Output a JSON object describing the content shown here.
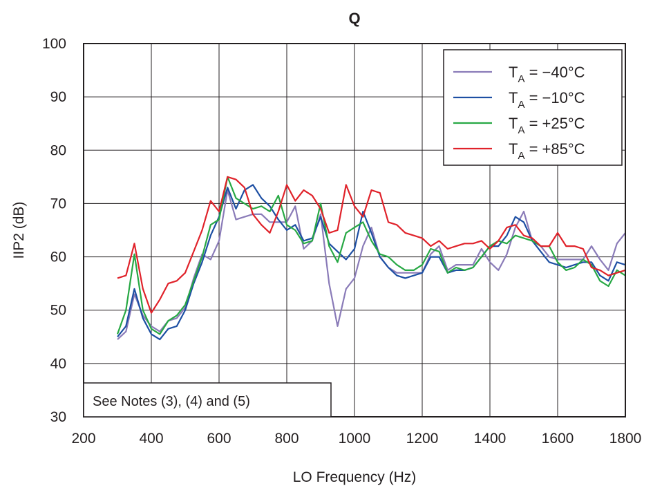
{
  "chart_data": {
    "type": "line",
    "title": "Q",
    "xlabel": "LO Frequency (Hz)",
    "ylabel": "IIP2 (dB)",
    "xlim": [
      200,
      1800
    ],
    "ylim": [
      30,
      100
    ],
    "xticks": [
      200,
      400,
      600,
      800,
      1000,
      1200,
      1400,
      1600,
      1800
    ],
    "yticks": [
      30,
      40,
      50,
      60,
      70,
      80,
      90,
      100
    ],
    "grid": true,
    "legend_position": "top-right",
    "annotation": "See Notes (3), (4) and (5)",
    "series": [
      {
        "legend_main": "T",
        "legend_sub": "A",
        "legend_rest": " = −40°C",
        "color": "#8a7bb8",
        "points": [
          [
            300,
            44.5
          ],
          [
            325,
            46
          ],
          [
            350,
            53
          ],
          [
            375,
            49
          ],
          [
            400,
            47
          ],
          [
            425,
            46
          ],
          [
            450,
            48
          ],
          [
            475,
            48.5
          ],
          [
            500,
            50.5
          ],
          [
            525,
            56
          ],
          [
            550,
            60.5
          ],
          [
            575,
            59.5
          ],
          [
            600,
            63
          ],
          [
            625,
            72.5
          ],
          [
            650,
            67
          ],
          [
            675,
            67.5
          ],
          [
            700,
            68
          ],
          [
            725,
            68
          ],
          [
            750,
            66.5
          ],
          [
            775,
            66.5
          ],
          [
            800,
            66.5
          ],
          [
            825,
            69.5
          ],
          [
            850,
            61.5
          ],
          [
            875,
            63
          ],
          [
            900,
            68
          ],
          [
            925,
            55
          ],
          [
            950,
            47
          ],
          [
            975,
            54
          ],
          [
            1000,
            56
          ],
          [
            1025,
            62
          ],
          [
            1050,
            65.5
          ],
          [
            1075,
            60
          ],
          [
            1100,
            58
          ],
          [
            1125,
            57
          ],
          [
            1150,
            57
          ],
          [
            1175,
            57
          ],
          [
            1200,
            57
          ],
          [
            1225,
            60.5
          ],
          [
            1250,
            62
          ],
          [
            1275,
            57.5
          ],
          [
            1300,
            58.5
          ],
          [
            1325,
            58.5
          ],
          [
            1350,
            58.5
          ],
          [
            1375,
            61.5
          ],
          [
            1400,
            59
          ],
          [
            1425,
            57.5
          ],
          [
            1450,
            60.5
          ],
          [
            1475,
            65.5
          ],
          [
            1500,
            68.5
          ],
          [
            1525,
            63
          ],
          [
            1550,
            62
          ],
          [
            1575,
            60
          ],
          [
            1600,
            59.5
          ],
          [
            1625,
            59.5
          ],
          [
            1650,
            59.5
          ],
          [
            1675,
            59.5
          ],
          [
            1700,
            62
          ],
          [
            1725,
            59.5
          ],
          [
            1750,
            57.5
          ],
          [
            1775,
            62.5
          ],
          [
            1800,
            64.5
          ]
        ]
      },
      {
        "legend_main": "T",
        "legend_sub": "A",
        "legend_rest": " = −10°C",
        "color": "#1d4fa3",
        "points": [
          [
            300,
            45
          ],
          [
            325,
            47
          ],
          [
            350,
            54
          ],
          [
            375,
            48.5
          ],
          [
            400,
            45.5
          ],
          [
            425,
            44.5
          ],
          [
            450,
            46.5
          ],
          [
            475,
            47
          ],
          [
            500,
            50
          ],
          [
            525,
            55
          ],
          [
            550,
            59
          ],
          [
            575,
            64
          ],
          [
            600,
            67.5
          ],
          [
            625,
            73
          ],
          [
            650,
            69
          ],
          [
            675,
            72.5
          ],
          [
            700,
            73.5
          ],
          [
            725,
            71
          ],
          [
            750,
            69.5
          ],
          [
            775,
            67
          ],
          [
            800,
            65
          ],
          [
            825,
            66
          ],
          [
            850,
            63
          ],
          [
            875,
            63.5
          ],
          [
            900,
            67.5
          ],
          [
            925,
            62.5
          ],
          [
            950,
            61
          ],
          [
            975,
            59.5
          ],
          [
            1000,
            61.5
          ],
          [
            1025,
            68.5
          ],
          [
            1050,
            64.5
          ],
          [
            1075,
            60
          ],
          [
            1100,
            58
          ],
          [
            1125,
            56.5
          ],
          [
            1150,
            56
          ],
          [
            1175,
            56.5
          ],
          [
            1200,
            57
          ],
          [
            1225,
            60
          ],
          [
            1250,
            60
          ],
          [
            1275,
            57
          ],
          [
            1300,
            57.5
          ],
          [
            1325,
            57.5
          ],
          [
            1350,
            58
          ],
          [
            1375,
            60
          ],
          [
            1400,
            62
          ],
          [
            1425,
            62
          ],
          [
            1450,
            64
          ],
          [
            1475,
            67.5
          ],
          [
            1500,
            66.5
          ],
          [
            1525,
            63
          ],
          [
            1550,
            61
          ],
          [
            1575,
            59
          ],
          [
            1600,
            58.5
          ],
          [
            1625,
            58
          ],
          [
            1650,
            58.5
          ],
          [
            1675,
            59
          ],
          [
            1700,
            59
          ],
          [
            1725,
            56.5
          ],
          [
            1750,
            55.5
          ],
          [
            1775,
            59
          ],
          [
            1800,
            58.5
          ]
        ]
      },
      {
        "legend_main": "T",
        "legend_sub": "A",
        "legend_rest": " = +25°C",
        "color": "#27a844",
        "points": [
          [
            300,
            45.5
          ],
          [
            325,
            50
          ],
          [
            350,
            60.5
          ],
          [
            375,
            50
          ],
          [
            400,
            46.5
          ],
          [
            425,
            45.5
          ],
          [
            450,
            48
          ],
          [
            475,
            49
          ],
          [
            500,
            51
          ],
          [
            525,
            55.5
          ],
          [
            550,
            60
          ],
          [
            575,
            66
          ],
          [
            600,
            67
          ],
          [
            625,
            75
          ],
          [
            650,
            71
          ],
          [
            675,
            70
          ],
          [
            700,
            69
          ],
          [
            725,
            69.5
          ],
          [
            750,
            68.5
          ],
          [
            775,
            71.5
          ],
          [
            800,
            66
          ],
          [
            825,
            65
          ],
          [
            850,
            62.5
          ],
          [
            875,
            63
          ],
          [
            900,
            70
          ],
          [
            925,
            62
          ],
          [
            950,
            59
          ],
          [
            975,
            64.5
          ],
          [
            1000,
            65.5
          ],
          [
            1025,
            66.5
          ],
          [
            1050,
            63
          ],
          [
            1075,
            60.5
          ],
          [
            1100,
            60
          ],
          [
            1125,
            58.5
          ],
          [
            1150,
            57.5
          ],
          [
            1175,
            57.5
          ],
          [
            1200,
            58.5
          ],
          [
            1225,
            61.5
          ],
          [
            1250,
            61
          ],
          [
            1275,
            57
          ],
          [
            1300,
            58
          ],
          [
            1325,
            57.5
          ],
          [
            1350,
            58
          ],
          [
            1375,
            60
          ],
          [
            1400,
            62
          ],
          [
            1425,
            63
          ],
          [
            1450,
            62.5
          ],
          [
            1475,
            64
          ],
          [
            1500,
            63.5
          ],
          [
            1525,
            63
          ],
          [
            1550,
            62
          ],
          [
            1575,
            62
          ],
          [
            1600,
            59
          ],
          [
            1625,
            57.5
          ],
          [
            1650,
            58
          ],
          [
            1675,
            59.5
          ],
          [
            1700,
            58.5
          ],
          [
            1725,
            55.5
          ],
          [
            1750,
            54.5
          ],
          [
            1775,
            57.5
          ],
          [
            1800,
            56.5
          ]
        ]
      },
      {
        "legend_main": "T",
        "legend_sub": "A",
        "legend_rest": " = +85°C",
        "color": "#e0222a",
        "points": [
          [
            300,
            56
          ],
          [
            325,
            56.5
          ],
          [
            350,
            62.5
          ],
          [
            375,
            54
          ],
          [
            400,
            49.5
          ],
          [
            425,
            52
          ],
          [
            450,
            55
          ],
          [
            475,
            55.5
          ],
          [
            500,
            57
          ],
          [
            525,
            61
          ],
          [
            550,
            65
          ],
          [
            575,
            70.5
          ],
          [
            600,
            68.5
          ],
          [
            625,
            75
          ],
          [
            650,
            74.5
          ],
          [
            675,
            73
          ],
          [
            700,
            68
          ],
          [
            725,
            66
          ],
          [
            750,
            64.5
          ],
          [
            775,
            68.5
          ],
          [
            800,
            73.5
          ],
          [
            825,
            70.5
          ],
          [
            850,
            72.5
          ],
          [
            875,
            71.5
          ],
          [
            900,
            69
          ],
          [
            925,
            64.5
          ],
          [
            950,
            65
          ],
          [
            975,
            73.5
          ],
          [
            1000,
            69.5
          ],
          [
            1025,
            67.5
          ],
          [
            1050,
            72.5
          ],
          [
            1075,
            72
          ],
          [
            1100,
            66.5
          ],
          [
            1125,
            66
          ],
          [
            1150,
            64.5
          ],
          [
            1175,
            64
          ],
          [
            1200,
            63.5
          ],
          [
            1225,
            62
          ],
          [
            1250,
            63
          ],
          [
            1275,
            61.5
          ],
          [
            1300,
            62
          ],
          [
            1325,
            62.5
          ],
          [
            1350,
            62.5
          ],
          [
            1375,
            63
          ],
          [
            1400,
            61.5
          ],
          [
            1425,
            63
          ],
          [
            1450,
            65.5
          ],
          [
            1475,
            66
          ],
          [
            1500,
            64
          ],
          [
            1525,
            63.5
          ],
          [
            1550,
            62
          ],
          [
            1575,
            62
          ],
          [
            1600,
            64.5
          ],
          [
            1625,
            62
          ],
          [
            1650,
            62
          ],
          [
            1675,
            61.5
          ],
          [
            1700,
            58
          ],
          [
            1725,
            57.5
          ],
          [
            1750,
            56.5
          ],
          [
            1775,
            57
          ],
          [
            1800,
            57.5
          ]
        ]
      }
    ]
  }
}
